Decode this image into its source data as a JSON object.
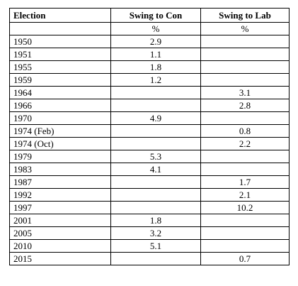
{
  "table": {
    "headers": {
      "election": "Election",
      "swing_con": "Swing to Con",
      "swing_lab": "Swing to Lab"
    },
    "units": {
      "election": "",
      "swing_con": "%",
      "swing_lab": "%"
    },
    "rows": [
      {
        "election": "1950",
        "con": "2.9",
        "lab": ""
      },
      {
        "election": "1951",
        "con": "1.1",
        "lab": ""
      },
      {
        "election": "1955",
        "con": "1.8",
        "lab": ""
      },
      {
        "election": "1959",
        "con": "1.2",
        "lab": ""
      },
      {
        "election": "1964",
        "con": "",
        "lab": "3.1"
      },
      {
        "election": "1966",
        "con": "",
        "lab": "2.8"
      },
      {
        "election": "1970",
        "con": "4.9",
        "lab": ""
      },
      {
        "election": "1974 (Feb)",
        "con": "",
        "lab": "0.8"
      },
      {
        "election": "1974 (Oct)",
        "con": "",
        "lab": "2.2"
      },
      {
        "election": "1979",
        "con": "5.3",
        "lab": ""
      },
      {
        "election": "1983",
        "con": "4.1",
        "lab": ""
      },
      {
        "election": "1987",
        "con": "",
        "lab": "1.7"
      },
      {
        "election": "1992",
        "con": "",
        "lab": "2.1"
      },
      {
        "election": "1997",
        "con": "",
        "lab": "10.2"
      },
      {
        "election": "2001",
        "con": "1.8",
        "lab": ""
      },
      {
        "election": "2005",
        "con": "3.2",
        "lab": ""
      },
      {
        "election": "2010",
        "con": "5.1",
        "lab": ""
      },
      {
        "election": "2015",
        "con": "",
        "lab": "0.7"
      }
    ]
  }
}
